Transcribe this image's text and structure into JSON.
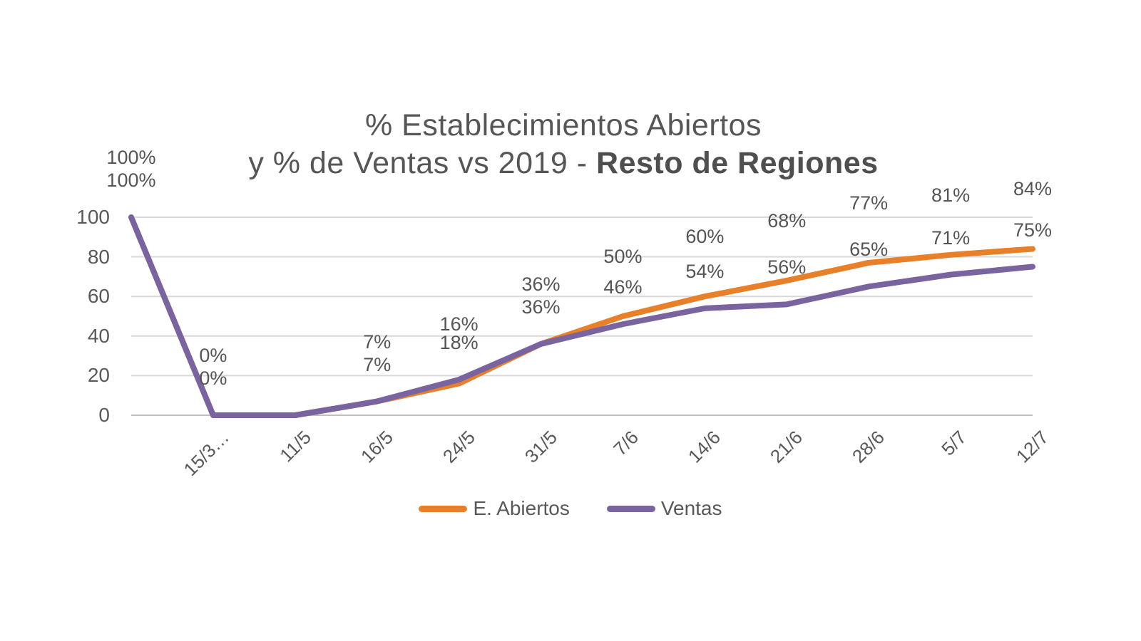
{
  "title": {
    "line1": "% Establecimientos Abiertos",
    "line2_prefix": "y % de Ventas vs 2019 - ",
    "line2_bold": "Resto de Regiones"
  },
  "colors": {
    "abiertos": "#E8802A",
    "ventas": "#7A64A0",
    "grid": "#D9D9D9",
    "axis_line": "#BFBFBF",
    "text": "#595959"
  },
  "chart_data": {
    "type": "line",
    "title": "% Establecimientos Abiertos y % de Ventas vs 2019 - Resto de Regiones",
    "categories": [
      "",
      "15/3…",
      "11/5",
      "16/5",
      "24/5",
      "31/5",
      "7/6",
      "14/6",
      "21/6",
      "28/6",
      "5/7",
      "12/7"
    ],
    "series": [
      {
        "name": "E. Abiertos",
        "color": "#E8802A",
        "values": [
          100,
          0,
          0,
          7,
          16,
          36,
          50,
          60,
          68,
          77,
          81,
          84
        ],
        "point_labels": [
          "100%",
          "0%",
          null,
          "7%",
          "16%",
          "36%",
          "50%",
          "60%",
          "68%",
          "77%",
          "81%",
          "84%"
        ]
      },
      {
        "name": "Ventas",
        "color": "#7A64A0",
        "values": [
          100,
          0,
          0,
          7,
          18,
          36,
          46,
          54,
          56,
          65,
          71,
          75
        ],
        "point_labels": [
          "100%",
          "0%",
          null,
          "7%",
          "18%",
          "36%",
          "46%",
          "54%",
          "56%",
          "65%",
          "71%",
          "75%"
        ]
      }
    ],
    "y_axis": {
      "min": 0,
      "max": 100,
      "ticks": [
        0,
        20,
        40,
        60,
        80,
        100
      ]
    },
    "grid": true,
    "legend_position": "bottom"
  }
}
